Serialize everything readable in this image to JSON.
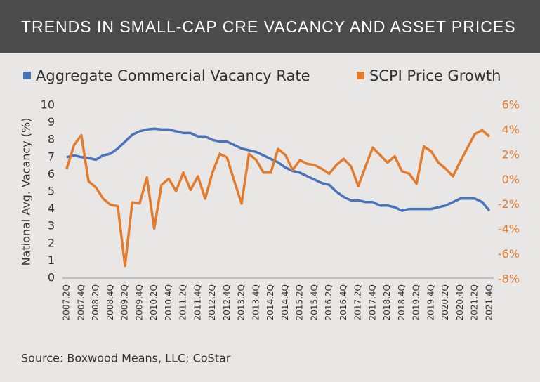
{
  "chart_data": {
    "type": "line",
    "title": "TRENDS IN SMALL-CAP CRE VACANCY AND ASSET PRICES",
    "y_label": "National Avg. Vacancy (%)",
    "source": "Source: Boxwood Means, LLC; CoStar",
    "categories": [
      "2007.2Q",
      null,
      "2007.4Q",
      null,
      "2008.2Q",
      null,
      "2008.4Q",
      null,
      "2009.2Q",
      null,
      "2009.4Q",
      null,
      "2010.2Q",
      null,
      "2010.4Q",
      null,
      "2011.2Q",
      null,
      "2011.4Q",
      null,
      "2012.2Q",
      null,
      "2012.4Q",
      null,
      "2013.2Q",
      null,
      "2013.4Q",
      null,
      "2014.2Q",
      null,
      "2014.4Q",
      null,
      "2015.2Q",
      null,
      "2015.4Q",
      null,
      "2016.2Q",
      null,
      "2016.4Q",
      null,
      "2017.2Q",
      null,
      "2017.4Q",
      null,
      "2018.2Q",
      null,
      "2018.4Q",
      null,
      "2019.2Q",
      null,
      "2019.4Q",
      null,
      "2020.2Q",
      null,
      "2020.4Q",
      null,
      "2021.2Q",
      null,
      "2021.4Q"
    ],
    "series": [
      {
        "name": "Aggregate Commercial Vacancy Rate",
        "color": "#4a74ba",
        "values": [
          7.0,
          7.1,
          7.0,
          6.95,
          6.85,
          7.1,
          7.2,
          7.5,
          7.9,
          8.3,
          8.5,
          8.6,
          8.65,
          8.6,
          8.6,
          8.5,
          8.4,
          8.4,
          8.2,
          8.2,
          8.0,
          7.9,
          7.9,
          7.7,
          7.5,
          7.4,
          7.3,
          7.1,
          6.9,
          6.7,
          6.4,
          6.2,
          6.1,
          5.9,
          5.7,
          5.5,
          5.4,
          5.0,
          4.7,
          4.5,
          4.5,
          4.4,
          4.4,
          4.2,
          4.2,
          4.1,
          3.9,
          4.0,
          4.0,
          4.0,
          4.0,
          4.1,
          4.2,
          4.4,
          4.6,
          4.6,
          4.6,
          4.4,
          3.9
        ]
      },
      {
        "name": "SCPI Price Growth",
        "color": "#e37b2f",
        "axis": "y2",
        "values": [
          0.9,
          2.8,
          3.6,
          -0.1,
          -0.6,
          -1.5,
          -2.0,
          -2.1,
          -6.9,
          -1.8,
          -1.9,
          0.2,
          -3.9,
          -0.4,
          0.1,
          -0.9,
          0.6,
          -0.8,
          0.3,
          -1.5,
          0.6,
          2.1,
          1.8,
          -0.1,
          -1.9,
          2.1,
          1.6,
          0.6,
          0.6,
          2.5,
          2.0,
          0.8,
          1.6,
          1.3,
          1.2,
          0.9,
          0.5,
          1.2,
          1.7,
          1.1,
          -0.5,
          1.1,
          2.6,
          2.0,
          1.4,
          1.9,
          0.7,
          0.5,
          -0.3,
          2.7,
          2.3,
          1.4,
          0.9,
          0.3,
          1.5,
          2.6,
          3.7,
          4.0,
          3.5
        ]
      }
    ],
    "ylim": [
      0,
      10
    ],
    "yticks": [
      0,
      1,
      2,
      3,
      4,
      5,
      6,
      7,
      8,
      9,
      10
    ],
    "y2lim": [
      -8,
      6
    ],
    "y2ticks": [
      {
        "value": -8,
        "label": "-8%"
      },
      {
        "value": -6,
        "label": "-6%"
      },
      {
        "value": -4,
        "label": "-4%"
      },
      {
        "value": -2,
        "label": "-2%"
      },
      {
        "value": 0,
        "label": "0%"
      },
      {
        "value": 2,
        "label": "2%"
      },
      {
        "value": 4,
        "label": "4%"
      },
      {
        "value": 6,
        "label": "6%"
      }
    ],
    "legend": "top",
    "grid": false
  }
}
